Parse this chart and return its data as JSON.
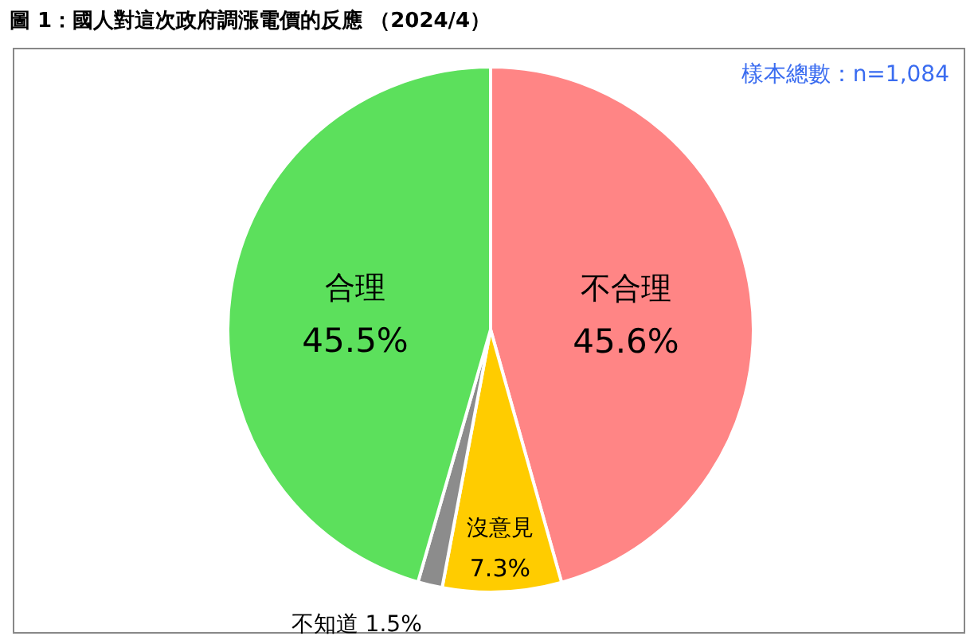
{
  "chart_data": {
    "type": "pie",
    "title": "**圖 1：國人對這次政府調漲電價的反應 （2024/4）**",
    "categories": [
      "不合理",
      "沒意見",
      "不知道",
      "合理"
    ],
    "values": [
      45.6,
      7.3,
      1.5,
      45.5
    ],
    "colors": [
      "#ff8585",
      "#ffcc00",
      "#8c8c8c",
      "#5ce05c"
    ],
    "value_labels": [
      "45.6%",
      "7.3%",
      "1.5%",
      "45.5%"
    ],
    "annotations": [
      "樣本總數：n=1,084"
    ]
  }
}
